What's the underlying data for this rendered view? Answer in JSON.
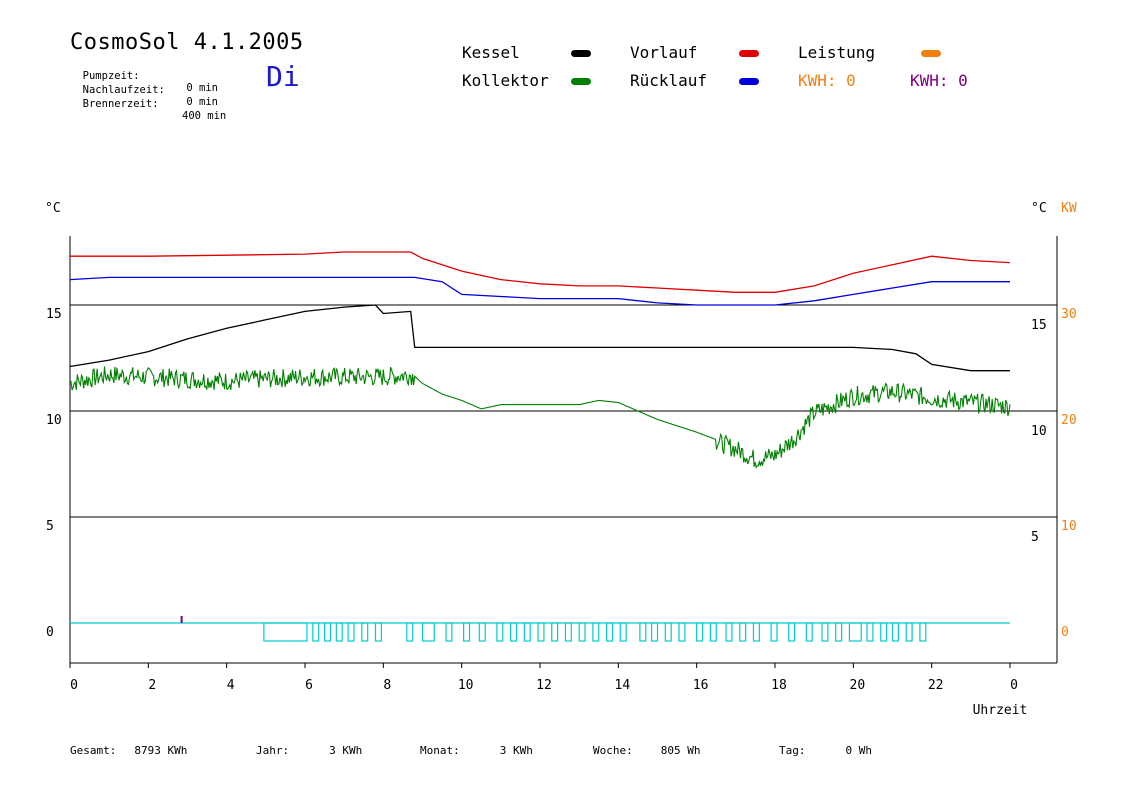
{
  "header": {
    "title": "CosmoSol 4.1.2005",
    "day": "Di",
    "info": [
      {
        "label": "Pumpzeit:",
        "value": "0 min"
      },
      {
        "label": "Nachlaufzeit:",
        "value": "0 min"
      },
      {
        "label": "Brennerzeit:",
        "value": "400 min"
      }
    ]
  },
  "legend": {
    "kessel": "Kessel",
    "kollektor": "Kollektor",
    "vorlauf": "Vorlauf",
    "ruecklauf": "Rücklauf",
    "leistung": "Leistung",
    "kwh1": "KWH: 0",
    "kwh2": "KWH: 0"
  },
  "colors": {
    "kessel": "#000000",
    "kollektor": "#008000",
    "vorlauf": "#e00000",
    "ruecklauf": "#0000dd",
    "leistung": "#f08010",
    "kwh2": "#800080",
    "pump": "#00cccc"
  },
  "chart_data": {
    "type": "line",
    "left_unit": "°C",
    "right_unit_c": "°C",
    "right_unit_kw": "KW",
    "xlabel": "Uhrzeit",
    "x_ticks": [
      "0",
      "2",
      "4",
      "6",
      "8",
      "10",
      "12",
      "14",
      "16",
      "18",
      "20",
      "22",
      "0"
    ],
    "left_ticks": [
      "0",
      "5",
      "10",
      "15"
    ],
    "right_c_ticks": [
      "5",
      "10",
      "15"
    ],
    "right_kw_ticks": [
      "0",
      "10",
      "20",
      "30"
    ],
    "ylim": [
      -2,
      18.3
    ],
    "xlim": [
      0,
      24
    ],
    "grid": "horizontal",
    "series": [
      {
        "key": "vorlauf",
        "name": "Vorlauf",
        "x": [
          0,
          2,
          4,
          6,
          7,
          8,
          8.7,
          9,
          10,
          11,
          12,
          13,
          14,
          15,
          16,
          17,
          18,
          19,
          20,
          21,
          22,
          23,
          24
        ],
        "y": [
          17.3,
          17.3,
          17.35,
          17.4,
          17.5,
          17.5,
          17.5,
          17.2,
          16.6,
          16.2,
          16.0,
          15.9,
          15.9,
          15.8,
          15.7,
          15.6,
          15.6,
          15.9,
          16.5,
          16.9,
          17.3,
          17.1,
          17.0
        ]
      },
      {
        "key": "ruecklauf",
        "name": "Rücklauf",
        "x": [
          0,
          1,
          4,
          8,
          8.8,
          9.5,
          10,
          11,
          12,
          13,
          14,
          15,
          16,
          17,
          18,
          19,
          20,
          21,
          22,
          23,
          24
        ],
        "y": [
          16.2,
          16.3,
          16.3,
          16.3,
          16.3,
          16.1,
          15.5,
          15.4,
          15.3,
          15.3,
          15.3,
          15.1,
          15.0,
          15.0,
          15.0,
          15.2,
          15.5,
          15.8,
          16.1,
          16.1,
          16.1
        ]
      },
      {
        "key": "kessel",
        "name": "Kessel",
        "x": [
          0,
          1,
          2,
          3,
          4,
          5,
          6,
          7,
          7.8,
          8,
          8.7,
          8.8,
          9,
          10,
          12,
          14,
          16,
          18,
          20,
          21,
          21.6,
          22,
          23,
          24
        ],
        "y": [
          12.1,
          12.4,
          12.8,
          13.4,
          13.9,
          14.3,
          14.7,
          14.9,
          15.0,
          14.6,
          14.7,
          13.0,
          13.0,
          13.0,
          13.0,
          13.0,
          13.0,
          13.0,
          13.0,
          12.9,
          12.7,
          12.2,
          11.9,
          11.9
        ]
      },
      {
        "key": "kollektor",
        "name": "Kollektor",
        "x": [
          0,
          0.5,
          1,
          2,
          3,
          4,
          5,
          6,
          7,
          8,
          8.7,
          9,
          9.5,
          10,
          10.5,
          11,
          12,
          13,
          13.5,
          14,
          15,
          16,
          17,
          17.5,
          18,
          18.5,
          19,
          20,
          21,
          22,
          23,
          24
        ],
        "y": [
          11.4,
          11.6,
          11.8,
          11.7,
          11.6,
          11.5,
          11.6,
          11.7,
          11.7,
          11.7,
          11.8,
          11.3,
          10.8,
          10.5,
          10.1,
          10.3,
          10.3,
          10.3,
          10.5,
          10.4,
          9.6,
          9.0,
          8.3,
          7.8,
          8.0,
          8.8,
          10.0,
          10.8,
          11.0,
          10.7,
          10.5,
          10.3
        ]
      }
    ],
    "pump_blocks": [
      {
        "x": 4.95,
        "w": 1.1
      },
      {
        "x": 6.2,
        "w": 0.15
      },
      {
        "x": 6.5,
        "w": 0.15
      },
      {
        "x": 6.8,
        "w": 0.15
      },
      {
        "x": 7.1,
        "w": 0.15
      },
      {
        "x": 7.45,
        "w": 0.15
      },
      {
        "x": 7.8,
        "w": 0.15
      },
      {
        "x": 8.6,
        "w": 0.15
      },
      {
        "x": 9.0,
        "w": 0.3
      },
      {
        "x": 9.6,
        "w": 0.15
      },
      {
        "x": 10.05,
        "w": 0.15
      },
      {
        "x": 10.45,
        "w": 0.15
      },
      {
        "x": 10.9,
        "w": 0.15
      },
      {
        "x": 11.25,
        "w": 0.15
      },
      {
        "x": 11.6,
        "w": 0.15
      },
      {
        "x": 11.95,
        "w": 0.15
      },
      {
        "x": 12.3,
        "w": 0.15
      },
      {
        "x": 12.65,
        "w": 0.15
      },
      {
        "x": 13.0,
        "w": 0.15
      },
      {
        "x": 13.35,
        "w": 0.15
      },
      {
        "x": 13.7,
        "w": 0.15
      },
      {
        "x": 14.05,
        "w": 0.15
      },
      {
        "x": 14.55,
        "w": 0.15
      },
      {
        "x": 14.85,
        "w": 0.15
      },
      {
        "x": 15.2,
        "w": 0.15
      },
      {
        "x": 15.55,
        "w": 0.15
      },
      {
        "x": 16.0,
        "w": 0.15
      },
      {
        "x": 16.35,
        "w": 0.15
      },
      {
        "x": 16.75,
        "w": 0.15
      },
      {
        "x": 17.1,
        "w": 0.15
      },
      {
        "x": 17.45,
        "w": 0.15
      },
      {
        "x": 17.9,
        "w": 0.15
      },
      {
        "x": 18.35,
        "w": 0.15
      },
      {
        "x": 18.8,
        "w": 0.15
      },
      {
        "x": 19.2,
        "w": 0.15
      },
      {
        "x": 19.55,
        "w": 0.15
      },
      {
        "x": 19.9,
        "w": 0.3
      },
      {
        "x": 20.35,
        "w": 0.15
      },
      {
        "x": 20.7,
        "w": 0.15
      },
      {
        "x": 21.0,
        "w": 0.15
      },
      {
        "x": 21.35,
        "w": 0.15
      },
      {
        "x": 21.7,
        "w": 0.15
      }
    ]
  },
  "footer": [
    {
      "label": "Gesamt:",
      "value": "8793 KWh"
    },
    {
      "label": "Jahr:",
      "value": "3 KWh"
    },
    {
      "label": "Monat:",
      "value": "3 KWh"
    },
    {
      "label": "Woche:",
      "value": "805 Wh"
    },
    {
      "label": "Tag:",
      "value": "0 Wh"
    }
  ]
}
